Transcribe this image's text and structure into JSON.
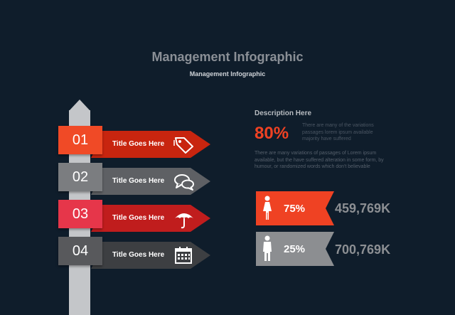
{
  "header": {
    "title": "Management Infographic",
    "subtitle": "Management Infographic"
  },
  "signpost": {
    "items": [
      {
        "number": "01",
        "label": "Title Goes Here",
        "icon": "price-tag-icon",
        "color": "#c8250f"
      },
      {
        "number": "02",
        "label": "Title Goes Here",
        "icon": "chat-bubbles-icon",
        "color": "#5e6064"
      },
      {
        "number": "03",
        "label": "Title Goes Here",
        "icon": "umbrella-icon",
        "color": "#c01d1d"
      },
      {
        "number": "04",
        "label": "Title Goes Here",
        "icon": "calendar-icon",
        "color": "#3d3f42"
      }
    ]
  },
  "description": {
    "title": "Description Here",
    "percent": "80%",
    "short_text": "There are many of the variations passages lorem ipsum available majority have suffered",
    "paragraph": "There are many variations of passages  of Lorem ipsum available, but the have suffered alteration in some  form, by humour,  or randomized words  which  don't believable"
  },
  "stats": [
    {
      "icon": "female-person-icon",
      "percent": "75%",
      "value": "459,769K",
      "color": "#ef4223"
    },
    {
      "icon": "male-person-icon",
      "percent": "25%",
      "value": "700,769K",
      "color": "#8c8e91"
    }
  ]
}
